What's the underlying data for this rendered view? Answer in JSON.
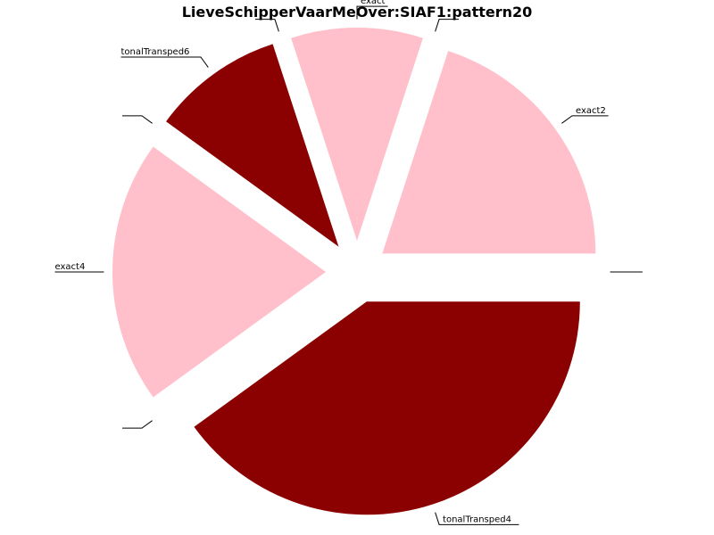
{
  "chart_data": {
    "type": "pie",
    "title": "LieveSchipperVaarMeOver:SIAF1:pattern20",
    "legend": "none",
    "slices": [
      {
        "label": "exact2",
        "value": 20,
        "color": "#FFC0CB"
      },
      {
        "label": "",
        "value": 0,
        "color": "#FFC0CB"
      },
      {
        "label": "exact",
        "value": 10,
        "color": "#FFC0CB"
      },
      {
        "label": "",
        "value": 0,
        "color": "#FFC0CB"
      },
      {
        "label": "tonalTransped6",
        "value": 10,
        "color": "#8B0000"
      },
      {
        "label": "",
        "value": 0,
        "color": "#8B0000"
      },
      {
        "label": "exact4",
        "value": 20,
        "color": "#FFC0CB"
      },
      {
        "label": "",
        "value": 0,
        "color": "#FFC0CB"
      },
      {
        "label": "tonalTransped4",
        "value": 40,
        "color": "#8B0000"
      },
      {
        "label": "",
        "value": 0,
        "color": "#8B0000"
      }
    ]
  }
}
